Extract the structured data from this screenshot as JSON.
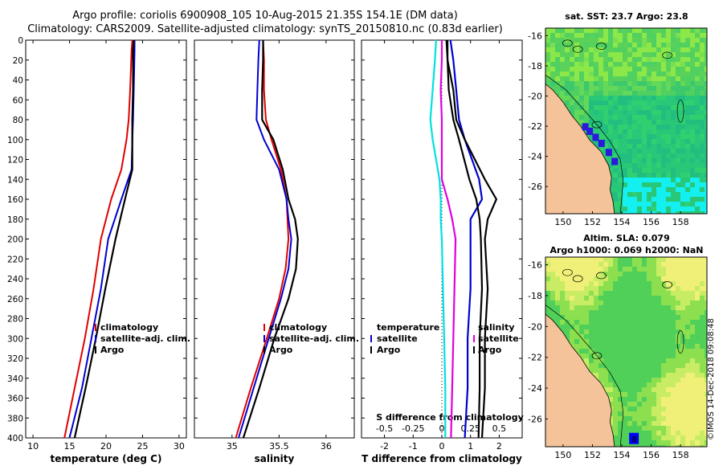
{
  "header": {
    "title_line1": "Argo profile: coriolis 6900908_105 10-Aug-2015 21.35S 154.1E (DM data)",
    "title_line2": "Climatology: CARS2009. Satellite-adjusted climatology: synTS_20150810.nc (0.83d earlier)"
  },
  "map_sst": {
    "title": "sat. SST: 23.7 Argo: 23.8"
  },
  "map_sla": {
    "title_line1": "Altim. SLA: 0.079",
    "title_line2": "Argo h1000: 0.069 h2000: NaN"
  },
  "credit": "©IMOS 14-Dec-2018 09:08:48",
  "colors": {
    "climatology": "#e00000",
    "satellite": "#0000d0",
    "argo": "#000000",
    "s_clim": "#00e0e0",
    "s_sat": "#e000e0",
    "s_argo": "#000000",
    "land": "#f5c39a"
  },
  "chart_data": [
    {
      "type": "line",
      "id": "temperature",
      "xlabel": "temperature (deg C)",
      "xlim": [
        9,
        31
      ],
      "xticks": [
        10,
        15,
        20,
        25,
        30
      ],
      "ylim": [
        0,
        400
      ],
      "yticks": [
        0,
        20,
        40,
        60,
        80,
        100,
        120,
        140,
        160,
        180,
        200,
        220,
        240,
        260,
        280,
        300,
        320,
        340,
        360,
        380,
        400
      ],
      "depth": [
        0,
        10,
        50,
        80,
        100,
        130,
        160,
        200,
        250,
        300,
        350,
        400
      ],
      "series": [
        {
          "name": "climatology",
          "values": [
            23.6,
            23.5,
            23.3,
            23.1,
            22.8,
            22.1,
            20.7,
            19.3,
            18.3,
            17.1,
            15.7,
            14.3
          ]
        },
        {
          "name": "satellite-adj. clim.",
          "values": [
            23.9,
            23.9,
            23.8,
            23.7,
            23.6,
            23.5,
            22.1,
            20.3,
            19.3,
            18.0,
            16.7,
            15.0
          ]
        },
        {
          "name": "Argo",
          "values": [
            23.8,
            23.7,
            23.7,
            23.6,
            23.6,
            23.6,
            22.6,
            21.3,
            19.9,
            18.6,
            17.2,
            15.7
          ]
        }
      ],
      "legend": [
        "climatology",
        "satellite-adj. clim.",
        "Argo"
      ]
    },
    {
      "type": "line",
      "id": "salinity",
      "xlabel": "salinity",
      "xlim": [
        34.6,
        36.3
      ],
      "xticks": [
        35,
        35.5,
        36
      ],
      "xtick_labels": [
        "35",
        "35.5",
        "36"
      ],
      "ylim": [
        0,
        400
      ],
      "depth": [
        0,
        20,
        50,
        80,
        100,
        130,
        160,
        180,
        200,
        230,
        260,
        300,
        350,
        400
      ],
      "series": [
        {
          "name": "climatology",
          "values": [
            35.33,
            35.34,
            35.34,
            35.36,
            35.42,
            35.52,
            35.58,
            35.59,
            35.6,
            35.57,
            35.5,
            35.37,
            35.2,
            35.04
          ]
        },
        {
          "name": "satellite-adj. clim.",
          "values": [
            35.29,
            35.28,
            35.27,
            35.26,
            35.34,
            35.5,
            35.58,
            35.6,
            35.63,
            35.6,
            35.52,
            35.39,
            35.23,
            35.07
          ]
        },
        {
          "name": "Argo",
          "values": [
            35.33,
            35.33,
            35.32,
            35.32,
            35.44,
            35.54,
            35.6,
            35.67,
            35.7,
            35.68,
            35.6,
            35.45,
            35.29,
            35.12
          ]
        }
      ],
      "legend": [
        "climatology",
        "satellite-adj. clim.",
        "Argo"
      ]
    },
    {
      "type": "line",
      "id": "difference",
      "xlabel": "T difference from climatology",
      "xlim": [
        -2.8,
        2.8
      ],
      "xticks": [
        -2,
        -1,
        0,
        1,
        2
      ],
      "top_axis_label": "S difference from climatology",
      "top_ticks": [
        -0.5,
        -0.25,
        0,
        0.25,
        0.5
      ],
      "ylim": [
        0,
        400
      ],
      "depth": [
        0,
        20,
        50,
        80,
        100,
        140,
        160,
        180,
        200,
        250,
        300,
        350,
        400
      ],
      "series": [
        {
          "name": "temperature satellite",
          "values": [
            0.3,
            0.4,
            0.5,
            0.6,
            0.8,
            1.3,
            1.4,
            1.0,
            1.0,
            1.0,
            0.9,
            0.9,
            0.8
          ]
        },
        {
          "name": "temperature Argo",
          "values": [
            0.2,
            0.2,
            0.4,
            0.5,
            0.8,
            1.5,
            1.9,
            1.6,
            1.5,
            1.6,
            1.5,
            1.5,
            1.4
          ]
        },
        {
          "name": "salinity climatology",
          "values": [
            -0.05,
            -0.06,
            -0.08,
            -0.1,
            -0.08,
            -0.02,
            -0.01,
            -0.01,
            -0.0,
            0.01,
            0.02,
            0.03,
            0.03
          ]
        },
        {
          "name": "salinity satellite",
          "values": [
            0.0,
            0.0,
            -0.01,
            0.0,
            0.0,
            0.0,
            0.05,
            0.09,
            0.12,
            0.11,
            0.1,
            0.09,
            0.08
          ]
        },
        {
          "name": "salinity Argo",
          "values": [
            0.04,
            0.05,
            0.06,
            0.1,
            0.15,
            0.24,
            0.3,
            0.33,
            0.34,
            0.35,
            0.33,
            0.33,
            0.32
          ]
        }
      ],
      "legend_temperature_title": "temperature",
      "legend_temperature": [
        "satellite",
        "Argo"
      ],
      "legend_salinity_title": "salinity",
      "legend_salinity": [
        "satellite",
        "Argo"
      ]
    },
    {
      "type": "heatmap",
      "id": "sst-map",
      "xticks": [
        150,
        152,
        154,
        156,
        158
      ],
      "yticks": [
        -16,
        -18,
        -20,
        -22,
        -24,
        -26
      ],
      "xlim": [
        148.8,
        159.8
      ],
      "ylim": [
        -27.8,
        -15.5
      ]
    },
    {
      "type": "heatmap",
      "id": "sla-map",
      "xticks": [
        150,
        152,
        154,
        156,
        158
      ],
      "yticks": [
        -16,
        -18,
        -20,
        -22,
        -24,
        -26
      ],
      "xlim": [
        148.8,
        159.8
      ],
      "ylim": [
        -27.8,
        -15.5
      ]
    }
  ]
}
